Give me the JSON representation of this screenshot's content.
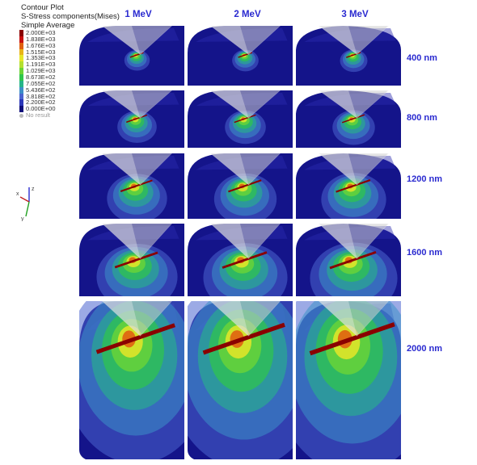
{
  "legend": {
    "title_lines": [
      "Contour Plot",
      "S-Stress components(Mises)",
      "Simple Average"
    ],
    "entries": [
      {
        "label": "2.000E+03",
        "color": "#8a0000"
      },
      {
        "label": "1.838E+03",
        "color": "#c81010"
      },
      {
        "label": "1.676E+03",
        "color": "#e06010"
      },
      {
        "label": "1.515E+03",
        "color": "#e8b418"
      },
      {
        "label": "1.353E+03",
        "color": "#e6e628"
      },
      {
        "label": "1.191E+03",
        "color": "#b4e030"
      },
      {
        "label": "1.029E+03",
        "color": "#6cd436"
      },
      {
        "label": "8.673E+02",
        "color": "#2fc64a"
      },
      {
        "label": "7.055E+02",
        "color": "#26b488"
      },
      {
        "label": "5.436E+02",
        "color": "#3d8fc8"
      },
      {
        "label": "3.818E+02",
        "color": "#4a64d0"
      },
      {
        "label": "2.200E+02",
        "color": "#2a36b8"
      },
      {
        "label": "0.000E+00",
        "color": "#0f0f7a"
      }
    ],
    "no_result": "No result"
  },
  "columns": [
    "1 MeV",
    "2 MeV",
    "3 MeV"
  ],
  "rows": [
    "400 nm",
    "800 nm",
    "1200 nm",
    "1600 nm",
    "2000 nm"
  ],
  "triad_axes": [
    "x",
    "y",
    "z"
  ],
  "colors": {
    "body": "#14148a",
    "label": "#2a2ad0"
  }
}
